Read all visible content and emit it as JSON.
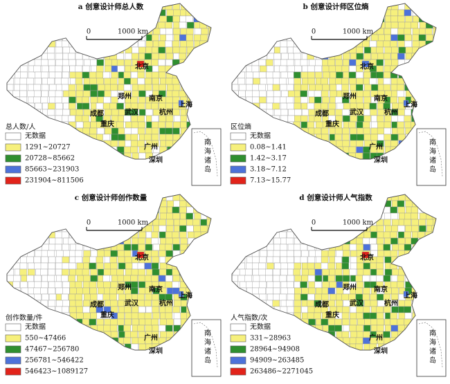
{
  "panels": [
    {
      "title": "a 创意设计师总人数",
      "legend_title": "总人数/人",
      "legend": [
        "无数据",
        "1291~20727",
        "20728~85662",
        "85663~231903",
        "231904~811506"
      ]
    },
    {
      "title": "b 创意设计师区位熵",
      "legend_title": "区位熵",
      "legend": [
        "无数据",
        "0.08~1.41",
        "1.42~3.17",
        "3.18~7.12",
        "7.13~15.77"
      ]
    },
    {
      "title": "c 创意设计师创作数量",
      "legend_title": "创作数量/件",
      "legend": [
        "无数据",
        "550~47466",
        "47467~256780",
        "256781~546422",
        "546423~1089127"
      ]
    },
    {
      "title": "d 创意设计师人气指数",
      "legend_title": "人气指数/次",
      "legend": [
        "无数据",
        "331~28963",
        "28964~94908",
        "94909~263485",
        "263486~2271045"
      ]
    }
  ],
  "scale_labels": [
    "0",
    "1000 km"
  ],
  "cities": [
    "北京",
    "郑州",
    "南京",
    "上海",
    "成都",
    "武汉",
    "杭州",
    "重庆",
    "广州",
    "深圳"
  ],
  "inset_label": "南海诸岛",
  "legend_colors": [
    "#ffffff",
    "#f6f07c",
    "#2f8f2f",
    "#4d72d9",
    "#e2231a"
  ]
}
